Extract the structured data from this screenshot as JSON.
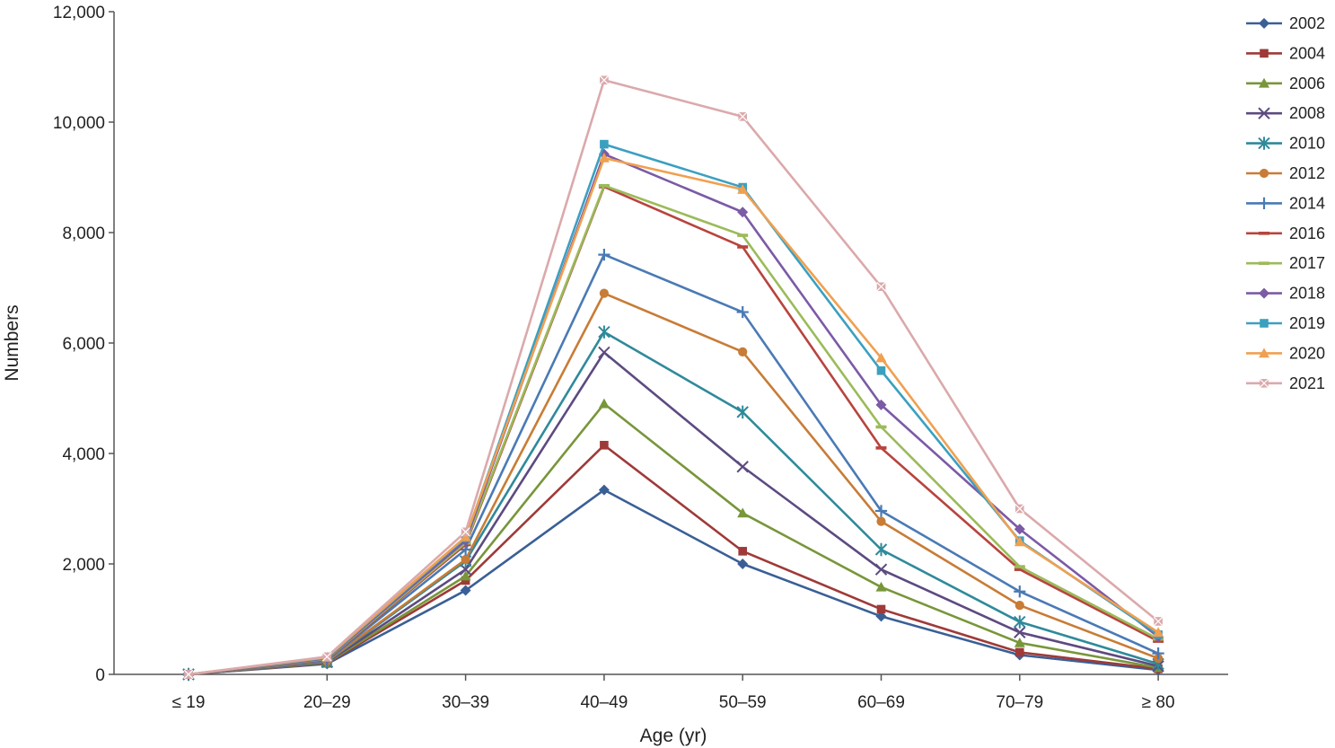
{
  "chart_data": {
    "type": "line",
    "title": "",
    "xlabel": "Age (yr)",
    "ylabel": "Numbers",
    "categories": [
      "≤ 19",
      "20–29",
      "30–39",
      "40–49",
      "50–59",
      "60–69",
      "70–79",
      "≥ 80"
    ],
    "ylim": [
      0,
      12000
    ],
    "yticks": [
      0,
      2000,
      4000,
      6000,
      8000,
      10000,
      12000
    ],
    "ytick_labels": [
      "0",
      "2,000",
      "4,000",
      "6,000",
      "8,000",
      "10,000",
      "12,000"
    ],
    "grid": false,
    "legend_position": "right",
    "series": [
      {
        "name": "2002",
        "color": "#3a5f96",
        "marker": "diamond",
        "values": [
          0,
          190,
          1520,
          3340,
          2000,
          1050,
          350,
          80
        ]
      },
      {
        "name": "2004",
        "color": "#9e3a38",
        "marker": "square",
        "values": [
          0,
          200,
          1700,
          4150,
          2230,
          1180,
          400,
          100
        ]
      },
      {
        "name": "2006",
        "color": "#78963a",
        "marker": "triangle",
        "values": [
          0,
          210,
          1780,
          4900,
          2920,
          1580,
          570,
          120
        ]
      },
      {
        "name": "2008",
        "color": "#5d4a80",
        "marker": "x",
        "values": [
          0,
          220,
          1900,
          5830,
          3760,
          1900,
          760,
          150
        ]
      },
      {
        "name": "2010",
        "color": "#2f8a9a",
        "marker": "star",
        "values": [
          0,
          230,
          2050,
          6200,
          4750,
          2260,
          950,
          190
        ]
      },
      {
        "name": "2012",
        "color": "#c87c36",
        "marker": "circle",
        "values": [
          0,
          240,
          2080,
          6900,
          5840,
          2770,
          1250,
          290
        ]
      },
      {
        "name": "2014",
        "color": "#4a7ab5",
        "marker": "plus",
        "values": [
          0,
          250,
          2260,
          7600,
          6560,
          2960,
          1500,
          380
        ]
      },
      {
        "name": "2016",
        "color": "#b8443e",
        "marker": "dash",
        "values": [
          0,
          270,
          2350,
          8830,
          7740,
          4100,
          1900,
          600
        ]
      },
      {
        "name": "2017",
        "color": "#9bbb59",
        "marker": "dash",
        "values": [
          0,
          280,
          2380,
          8850,
          7950,
          4480,
          1950,
          640
        ]
      },
      {
        "name": "2018",
        "color": "#7b5aa6",
        "marker": "diamond",
        "values": [
          0,
          290,
          2420,
          9420,
          8370,
          4880,
          2630,
          680
        ]
      },
      {
        "name": "2019",
        "color": "#3ba0c0",
        "marker": "square",
        "values": [
          0,
          300,
          2470,
          9600,
          8820,
          5500,
          2420,
          720
        ]
      },
      {
        "name": "2020",
        "color": "#f0a050",
        "marker": "triangle",
        "values": [
          0,
          310,
          2490,
          9350,
          8780,
          5730,
          2400,
          760
        ]
      },
      {
        "name": "2021",
        "color": "#dba9ab",
        "marker": "x-square",
        "values": [
          0,
          320,
          2580,
          10760,
          10100,
          7020,
          3000,
          960
        ]
      }
    ]
  }
}
